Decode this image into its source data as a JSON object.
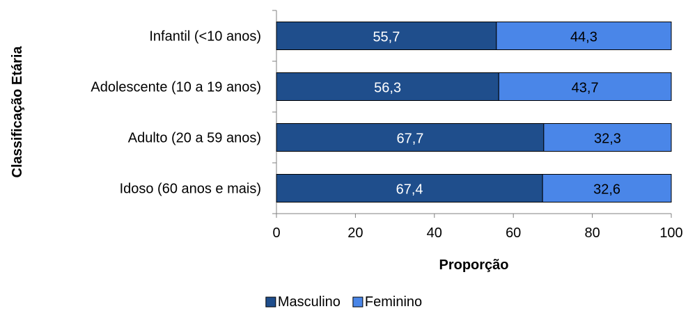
{
  "chart_data": {
    "type": "bar",
    "orientation": "horizontal",
    "stacked": true,
    "title": "",
    "xlabel": "Proporção",
    "ylabel": "Classificação Etária",
    "xlim": [
      0,
      100
    ],
    "xticks": [
      "0",
      "20",
      "40",
      "60",
      "80",
      "100"
    ],
    "grid": false,
    "legend_position": "bottom",
    "categories": [
      "Infantil (<10 anos)",
      "Adolescente (10 a 19 anos)",
      "Adulto (20 a 59 anos)",
      "Idoso (60 anos e mais)"
    ],
    "series": [
      {
        "name": "Masculino",
        "color": "#1F4E8C",
        "label_color": "#ffffff",
        "values": [
          55.7,
          56.3,
          67.7,
          67.4
        ],
        "labels": [
          "55,7",
          "56,3",
          "67,7",
          "67,4"
        ]
      },
      {
        "name": "Feminino",
        "color": "#4A86E8",
        "label_color": "#000000",
        "values": [
          44.3,
          43.7,
          32.3,
          32.6
        ],
        "labels": [
          "44,3",
          "43,7",
          "32,3",
          "32,6"
        ]
      }
    ]
  }
}
